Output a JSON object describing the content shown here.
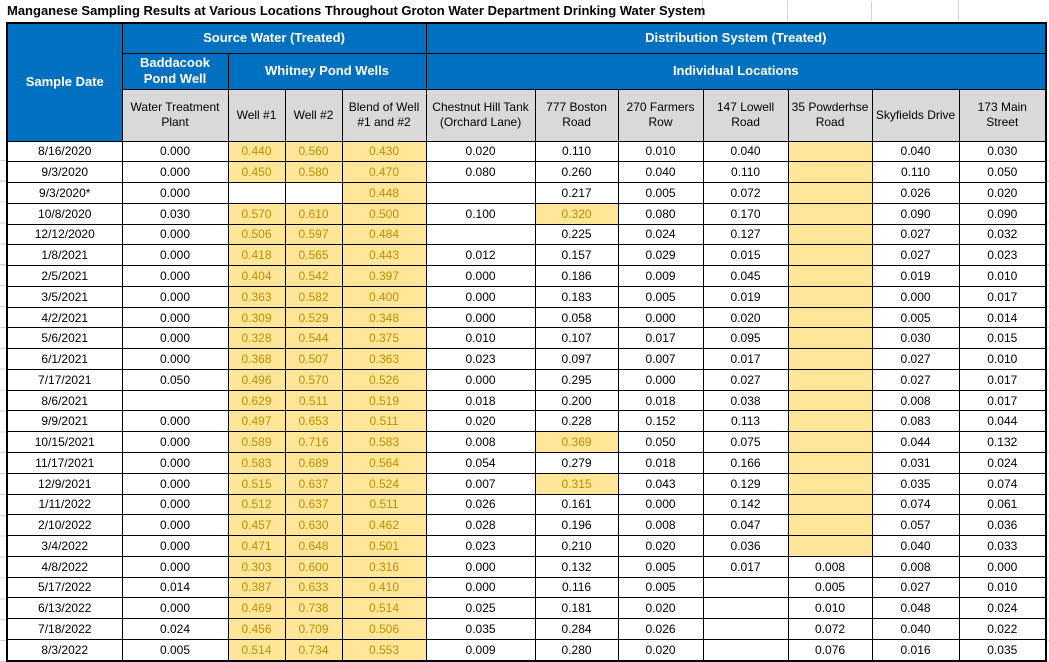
{
  "title": "Manganese Sampling Results at Various Locations Throughout Groton Water Department Drinking Water System",
  "colors": {
    "header_blue": "#0070C0",
    "header_gray": "#D9D9D9",
    "highlight_yellow": "#FFE699",
    "highlight_text": "#BF8F00",
    "grid_border": "#000000",
    "faint_gridline": "#d4d4d4"
  },
  "table": {
    "header": {
      "sample_date": "Sample Date",
      "source_water": "Source Water  (Treated)",
      "distribution": "Distribution System (Treated)",
      "baddacook": "Baddacook Pond Well",
      "whitney": "Whitney Pond Wells",
      "individual": "Individual Locations"
    },
    "columns": [
      {
        "id": "water-treatment-plant",
        "label": "Water Treatment Plant"
      },
      {
        "id": "well-1",
        "label": "Well #1"
      },
      {
        "id": "well-2",
        "label": "Well #2"
      },
      {
        "id": "blend-of-well-1-and-2",
        "label": "Blend of Well #1 and #2"
      },
      {
        "id": "chestnut-hill-tank",
        "label": "Chestnut Hill Tank (Orchard Lane)"
      },
      {
        "id": "777-boston-road",
        "label": "777 Boston Road"
      },
      {
        "id": "270-farmers-row",
        "label": "270 Farmers Row"
      },
      {
        "id": "147-lowell-road",
        "label": "147 Lowell Road"
      },
      {
        "id": "35-powderhse-road",
        "label": "35 Powderhse Road"
      },
      {
        "id": "skyfields-drive",
        "label": "Skyfields Drive"
      },
      {
        "id": "173-main-street",
        "label": "173 Main Street"
      }
    ],
    "rows": [
      {
        "date": "8/16/2020",
        "cells": [
          {
            "v": "0.000"
          },
          {
            "v": "0.440",
            "hl": true
          },
          {
            "v": "0.560",
            "hl": true
          },
          {
            "v": "0.430",
            "hl": true
          },
          {
            "v": "0.020"
          },
          {
            "v": "0.110"
          },
          {
            "v": "0.010"
          },
          {
            "v": "0.040"
          },
          {
            "v": "",
            "hl": true
          },
          {
            "v": "0.040"
          },
          {
            "v": "0.030"
          }
        ]
      },
      {
        "date": "9/3/2020",
        "cells": [
          {
            "v": "0.000"
          },
          {
            "v": "0.450",
            "hl": true
          },
          {
            "v": "0.580",
            "hl": true
          },
          {
            "v": "0.470",
            "hl": true
          },
          {
            "v": "0.080"
          },
          {
            "v": "0.260"
          },
          {
            "v": "0.040"
          },
          {
            "v": "0.110"
          },
          {
            "v": "",
            "hl": true
          },
          {
            "v": "0.110"
          },
          {
            "v": "0.050"
          }
        ]
      },
      {
        "date": "9/3/2020*",
        "cells": [
          {
            "v": "0.000"
          },
          {
            "v": ""
          },
          {
            "v": ""
          },
          {
            "v": "0.448",
            "hl": true
          },
          {
            "v": ""
          },
          {
            "v": "0.217"
          },
          {
            "v": "0.005"
          },
          {
            "v": "0.072"
          },
          {
            "v": "",
            "hl": true
          },
          {
            "v": "0.026"
          },
          {
            "v": "0.020"
          }
        ]
      },
      {
        "date": "10/8/2020",
        "cells": [
          {
            "v": "0.030"
          },
          {
            "v": "0.570",
            "hl": true
          },
          {
            "v": "0.610",
            "hl": true
          },
          {
            "v": "0.500",
            "hl": true
          },
          {
            "v": "0.100"
          },
          {
            "v": "0.320",
            "hl": true
          },
          {
            "v": "0.080"
          },
          {
            "v": "0.170"
          },
          {
            "v": "",
            "hl": true
          },
          {
            "v": "0.090"
          },
          {
            "v": "0.090"
          }
        ]
      },
      {
        "date": "12/12/2020",
        "cells": [
          {
            "v": "0.000"
          },
          {
            "v": "0.506",
            "hl": true
          },
          {
            "v": "0.597",
            "hl": true
          },
          {
            "v": "0.484",
            "hl": true
          },
          {
            "v": ""
          },
          {
            "v": "0.225"
          },
          {
            "v": "0.024"
          },
          {
            "v": "0.127"
          },
          {
            "v": "",
            "hl": true
          },
          {
            "v": "0.027"
          },
          {
            "v": "0.032"
          }
        ]
      },
      {
        "date": "1/8/2021",
        "cells": [
          {
            "v": "0.000"
          },
          {
            "v": "0.418",
            "hl": true
          },
          {
            "v": "0.565",
            "hl": true
          },
          {
            "v": "0.443",
            "hl": true
          },
          {
            "v": "0.012"
          },
          {
            "v": "0.157"
          },
          {
            "v": "0.029"
          },
          {
            "v": "0.015"
          },
          {
            "v": "",
            "hl": true
          },
          {
            "v": "0.027"
          },
          {
            "v": "0.023"
          }
        ]
      },
      {
        "date": "2/5/2021",
        "cells": [
          {
            "v": "0.000"
          },
          {
            "v": "0.404",
            "hl": true
          },
          {
            "v": "0.542",
            "hl": true
          },
          {
            "v": "0.397",
            "hl": true
          },
          {
            "v": "0.000"
          },
          {
            "v": "0.186"
          },
          {
            "v": "0.009"
          },
          {
            "v": "0.045"
          },
          {
            "v": "",
            "hl": true
          },
          {
            "v": "0.019"
          },
          {
            "v": "0.010"
          }
        ]
      },
      {
        "date": "3/5/2021",
        "cells": [
          {
            "v": "0.000"
          },
          {
            "v": "0.363",
            "hl": true
          },
          {
            "v": "0.582",
            "hl": true
          },
          {
            "v": "0.400",
            "hl": true
          },
          {
            "v": "0.000"
          },
          {
            "v": "0.183"
          },
          {
            "v": "0.005"
          },
          {
            "v": "0.019"
          },
          {
            "v": "",
            "hl": true
          },
          {
            "v": "0.000"
          },
          {
            "v": "0.017"
          }
        ]
      },
      {
        "date": "4/2/2021",
        "cells": [
          {
            "v": "0.000"
          },
          {
            "v": "0.309",
            "hl": true
          },
          {
            "v": "0.529",
            "hl": true
          },
          {
            "v": "0.348",
            "hl": true
          },
          {
            "v": "0.000"
          },
          {
            "v": "0.058"
          },
          {
            "v": "0.000"
          },
          {
            "v": "0.020"
          },
          {
            "v": "",
            "hl": true
          },
          {
            "v": "0.005"
          },
          {
            "v": "0.014"
          }
        ]
      },
      {
        "date": "5/6/2021",
        "cells": [
          {
            "v": "0.000"
          },
          {
            "v": "0.328",
            "hl": true
          },
          {
            "v": "0.544",
            "hl": true
          },
          {
            "v": "0.375",
            "hl": true
          },
          {
            "v": "0.010"
          },
          {
            "v": "0.107"
          },
          {
            "v": "0.017"
          },
          {
            "v": "0.095"
          },
          {
            "v": "",
            "hl": true
          },
          {
            "v": "0.030"
          },
          {
            "v": "0.015"
          }
        ]
      },
      {
        "date": "6/1/2021",
        "cells": [
          {
            "v": "0.000"
          },
          {
            "v": "0.368",
            "hl": true
          },
          {
            "v": "0.507",
            "hl": true
          },
          {
            "v": "0.363",
            "hl": true
          },
          {
            "v": "0.023"
          },
          {
            "v": "0.097"
          },
          {
            "v": "0.007"
          },
          {
            "v": "0.017"
          },
          {
            "v": "",
            "hl": true
          },
          {
            "v": "0.027"
          },
          {
            "v": "0.010"
          }
        ]
      },
      {
        "date": "7/17/2021",
        "cells": [
          {
            "v": "0.050"
          },
          {
            "v": "0.496",
            "hl": true
          },
          {
            "v": "0.570",
            "hl": true
          },
          {
            "v": "0.526",
            "hl": true
          },
          {
            "v": "0.000"
          },
          {
            "v": "0.295"
          },
          {
            "v": "0.000"
          },
          {
            "v": "0.027"
          },
          {
            "v": "",
            "hl": true
          },
          {
            "v": "0.027"
          },
          {
            "v": "0.017"
          }
        ]
      },
      {
        "date": "8/6/2021",
        "cells": [
          {
            "v": ""
          },
          {
            "v": "0.629",
            "hl": true
          },
          {
            "v": "0.511",
            "hl": true
          },
          {
            "v": "0.519",
            "hl": true
          },
          {
            "v": "0.018"
          },
          {
            "v": "0.200"
          },
          {
            "v": "0.018"
          },
          {
            "v": "0.038"
          },
          {
            "v": "",
            "hl": true
          },
          {
            "v": "0.008"
          },
          {
            "v": "0.017"
          }
        ]
      },
      {
        "date": "9/9/2021",
        "cells": [
          {
            "v": "0.000"
          },
          {
            "v": "0.497",
            "hl": true
          },
          {
            "v": "0.653",
            "hl": true
          },
          {
            "v": "0.511",
            "hl": true
          },
          {
            "v": "0.020"
          },
          {
            "v": "0.228"
          },
          {
            "v": "0.152"
          },
          {
            "v": "0.113"
          },
          {
            "v": "",
            "hl": true
          },
          {
            "v": "0.083"
          },
          {
            "v": "0.044"
          }
        ]
      },
      {
        "date": "10/15/2021",
        "cells": [
          {
            "v": "0.000"
          },
          {
            "v": "0.589",
            "hl": true
          },
          {
            "v": "0.716",
            "hl": true
          },
          {
            "v": "0.583",
            "hl": true
          },
          {
            "v": "0.008"
          },
          {
            "v": "0.369",
            "hl": true
          },
          {
            "v": "0.050"
          },
          {
            "v": "0.075"
          },
          {
            "v": "",
            "hl": true
          },
          {
            "v": "0.044"
          },
          {
            "v": "0.132"
          }
        ]
      },
      {
        "date": "11/17/2021",
        "cells": [
          {
            "v": "0.000"
          },
          {
            "v": "0.583",
            "hl": true
          },
          {
            "v": "0.689",
            "hl": true
          },
          {
            "v": "0.564",
            "hl": true
          },
          {
            "v": "0.054"
          },
          {
            "v": "0.279"
          },
          {
            "v": "0.018"
          },
          {
            "v": "0.166"
          },
          {
            "v": "",
            "hl": true
          },
          {
            "v": "0.031"
          },
          {
            "v": "0.024"
          }
        ]
      },
      {
        "date": "12/9/2021",
        "cells": [
          {
            "v": "0.000"
          },
          {
            "v": "0.515",
            "hl": true
          },
          {
            "v": "0.637",
            "hl": true
          },
          {
            "v": "0.524",
            "hl": true
          },
          {
            "v": "0.007"
          },
          {
            "v": "0.315",
            "hl": true
          },
          {
            "v": "0.043"
          },
          {
            "v": "0.129"
          },
          {
            "v": "",
            "hl": true
          },
          {
            "v": "0.035"
          },
          {
            "v": "0.074"
          }
        ]
      },
      {
        "date": "1/11/2022",
        "cells": [
          {
            "v": "0.000"
          },
          {
            "v": "0.512",
            "hl": true
          },
          {
            "v": "0.637",
            "hl": true
          },
          {
            "v": "0.511",
            "hl": true
          },
          {
            "v": "0.026"
          },
          {
            "v": "0.161"
          },
          {
            "v": "0.000"
          },
          {
            "v": "0.142"
          },
          {
            "v": "",
            "hl": true
          },
          {
            "v": "0.074"
          },
          {
            "v": "0.061"
          }
        ]
      },
      {
        "date": "2/10/2022",
        "cells": [
          {
            "v": "0.000"
          },
          {
            "v": "0.457",
            "hl": true
          },
          {
            "v": "0.630",
            "hl": true
          },
          {
            "v": "0.462",
            "hl": true
          },
          {
            "v": "0.028"
          },
          {
            "v": "0.196"
          },
          {
            "v": "0.008"
          },
          {
            "v": "0.047"
          },
          {
            "v": "",
            "hl": true
          },
          {
            "v": "0.057"
          },
          {
            "v": "0.036"
          }
        ]
      },
      {
        "date": "3/4/2022",
        "cells": [
          {
            "v": "0.000"
          },
          {
            "v": "0.471",
            "hl": true
          },
          {
            "v": "0.648",
            "hl": true
          },
          {
            "v": "0.501",
            "hl": true
          },
          {
            "v": "0.023"
          },
          {
            "v": "0.210"
          },
          {
            "v": "0.020"
          },
          {
            "v": "0.036"
          },
          {
            "v": "",
            "hl": true
          },
          {
            "v": "0.040"
          },
          {
            "v": "0.033"
          }
        ]
      },
      {
        "date": "4/8/2022",
        "cells": [
          {
            "v": "0.000"
          },
          {
            "v": "0.303",
            "hl": true
          },
          {
            "v": "0.600",
            "hl": true
          },
          {
            "v": "0.316",
            "hl": true
          },
          {
            "v": "0.000"
          },
          {
            "v": "0.132"
          },
          {
            "v": "0.005"
          },
          {
            "v": "0.017"
          },
          {
            "v": "0.008"
          },
          {
            "v": "0.008"
          },
          {
            "v": "0.000"
          }
        ]
      },
      {
        "date": "5/17/2022",
        "cells": [
          {
            "v": "0.014"
          },
          {
            "v": "0.387",
            "hl": true
          },
          {
            "v": "0.633",
            "hl": true
          },
          {
            "v": "0.410",
            "hl": true
          },
          {
            "v": "0.000"
          },
          {
            "v": "0.116"
          },
          {
            "v": "0.005"
          },
          {
            "v": ""
          },
          {
            "v": "0.005"
          },
          {
            "v": "0.027"
          },
          {
            "v": "0.010"
          }
        ]
      },
      {
        "date": "6/13/2022",
        "cells": [
          {
            "v": "0.000"
          },
          {
            "v": "0.469",
            "hl": true
          },
          {
            "v": "0.738",
            "hl": true
          },
          {
            "v": "0.514",
            "hl": true
          },
          {
            "v": "0.025"
          },
          {
            "v": "0.181"
          },
          {
            "v": "0.020"
          },
          {
            "v": ""
          },
          {
            "v": "0.010"
          },
          {
            "v": "0.048"
          },
          {
            "v": "0.024"
          }
        ]
      },
      {
        "date": "7/18/2022",
        "cells": [
          {
            "v": "0.024"
          },
          {
            "v": "0.456",
            "hl": true
          },
          {
            "v": "0.709",
            "hl": true
          },
          {
            "v": "0.506",
            "hl": true
          },
          {
            "v": "0.035"
          },
          {
            "v": "0.284"
          },
          {
            "v": "0.026"
          },
          {
            "v": ""
          },
          {
            "v": "0.072"
          },
          {
            "v": "0.040"
          },
          {
            "v": "0.022"
          }
        ]
      },
      {
        "date": "8/3/2022",
        "cells": [
          {
            "v": "0.005"
          },
          {
            "v": "0.514",
            "hl": true
          },
          {
            "v": "0.734",
            "hl": true
          },
          {
            "v": "0.553",
            "hl": true
          },
          {
            "v": "0.009"
          },
          {
            "v": "0.280"
          },
          {
            "v": "0.020"
          },
          {
            "v": ""
          },
          {
            "v": "0.076"
          },
          {
            "v": "0.016"
          },
          {
            "v": "0.035"
          }
        ]
      }
    ]
  }
}
